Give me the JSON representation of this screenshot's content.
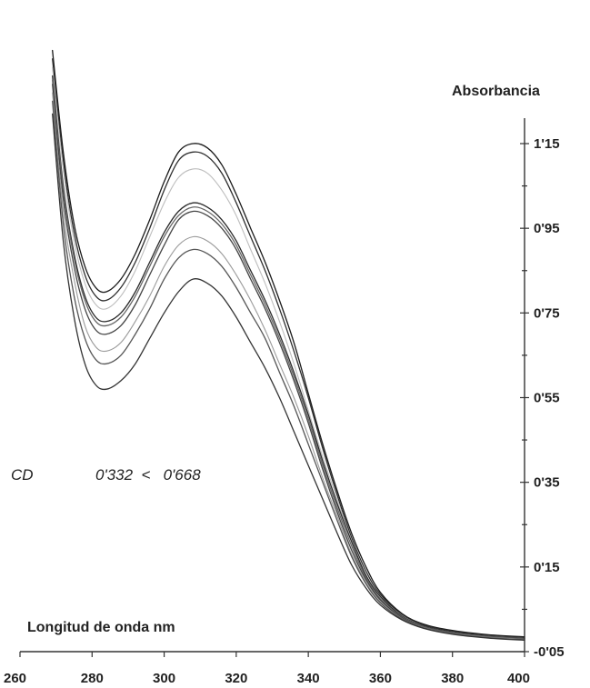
{
  "chart_data": {
    "type": "line",
    "xlabel": "Longitud de onda nm",
    "ylabel": "Absorbancia",
    "xlim": [
      260,
      400
    ],
    "ylim": [
      -0.05,
      1.2
    ],
    "x_ticks": [
      "260",
      "280",
      "300",
      "320",
      "340",
      "360",
      "380",
      "400"
    ],
    "y_ticks": [
      "1'15",
      "0'95",
      "0'75",
      "0'55",
      "0'35",
      "0'15",
      "-0'05"
    ],
    "y_tick_values": [
      1.15,
      0.95,
      0.75,
      0.55,
      0.35,
      0.15,
      -0.05
    ],
    "y_axis_position": "right",
    "grid": false,
    "annotation": {
      "label": "CD",
      "range_text": "0'332  <   0'668"
    },
    "x": [
      269,
      272,
      275,
      278,
      281,
      284,
      288,
      292,
      296,
      300,
      304,
      308,
      312,
      316,
      320,
      324,
      328,
      332,
      336,
      340,
      344,
      348,
      352,
      356,
      360,
      366,
      372,
      380,
      390,
      400
    ],
    "series": [
      {
        "color": "#1a1a1a",
        "values": [
          1.37,
          1.13,
          0.96,
          0.86,
          0.81,
          0.8,
          0.83,
          0.89,
          0.97,
          1.06,
          1.13,
          1.15,
          1.14,
          1.1,
          1.03,
          0.95,
          0.87,
          0.78,
          0.68,
          0.56,
          0.44,
          0.33,
          0.23,
          0.15,
          0.09,
          0.04,
          0.015,
          0.0,
          -0.01,
          -0.015
        ]
      },
      {
        "color": "#2e2e2e",
        "values": [
          1.35,
          1.11,
          0.94,
          0.84,
          0.79,
          0.78,
          0.81,
          0.87,
          0.95,
          1.04,
          1.11,
          1.13,
          1.12,
          1.08,
          1.01,
          0.93,
          0.85,
          0.76,
          0.66,
          0.55,
          0.43,
          0.32,
          0.22,
          0.14,
          0.085,
          0.038,
          0.013,
          -0.002,
          -0.012,
          -0.017
        ]
      },
      {
        "color": "#bdbdbd",
        "values": [
          1.33,
          1.09,
          0.92,
          0.82,
          0.77,
          0.76,
          0.79,
          0.85,
          0.93,
          1.01,
          1.07,
          1.09,
          1.08,
          1.04,
          0.98,
          0.9,
          0.82,
          0.73,
          0.63,
          0.52,
          0.41,
          0.31,
          0.21,
          0.13,
          0.08,
          0.035,
          0.01,
          -0.004,
          -0.013,
          -0.018
        ]
      },
      {
        "color": "#2a2a2a",
        "values": [
          1.31,
          1.05,
          0.89,
          0.79,
          0.74,
          0.73,
          0.75,
          0.8,
          0.87,
          0.94,
          0.99,
          1.01,
          1.0,
          0.97,
          0.92,
          0.85,
          0.78,
          0.7,
          0.61,
          0.51,
          0.4,
          0.3,
          0.21,
          0.13,
          0.08,
          0.034,
          0.01,
          -0.004,
          -0.013,
          -0.018
        ]
      },
      {
        "color": "#666666",
        "values": [
          1.3,
          1.04,
          0.88,
          0.78,
          0.73,
          0.72,
          0.74,
          0.79,
          0.86,
          0.93,
          0.98,
          1.0,
          0.99,
          0.96,
          0.91,
          0.84,
          0.77,
          0.69,
          0.6,
          0.5,
          0.39,
          0.29,
          0.2,
          0.125,
          0.075,
          0.032,
          0.009,
          -0.005,
          -0.014,
          -0.019
        ]
      },
      {
        "color": "#444444",
        "values": [
          1.29,
          1.02,
          0.86,
          0.76,
          0.71,
          0.7,
          0.72,
          0.77,
          0.84,
          0.91,
          0.97,
          0.99,
          0.98,
          0.95,
          0.9,
          0.83,
          0.76,
          0.68,
          0.59,
          0.49,
          0.38,
          0.28,
          0.19,
          0.12,
          0.072,
          0.03,
          0.008,
          -0.006,
          -0.015,
          -0.02
        ]
      },
      {
        "color": "#9a9a9a",
        "values": [
          1.27,
          0.99,
          0.83,
          0.72,
          0.67,
          0.66,
          0.68,
          0.73,
          0.79,
          0.86,
          0.91,
          0.93,
          0.92,
          0.89,
          0.84,
          0.78,
          0.71,
          0.63,
          0.55,
          0.46,
          0.36,
          0.27,
          0.18,
          0.115,
          0.068,
          0.028,
          0.007,
          -0.007,
          -0.016,
          -0.021
        ]
      },
      {
        "color": "#555555",
        "values": [
          1.25,
          0.96,
          0.79,
          0.69,
          0.64,
          0.63,
          0.65,
          0.7,
          0.76,
          0.83,
          0.88,
          0.9,
          0.89,
          0.86,
          0.81,
          0.75,
          0.69,
          0.61,
          0.53,
          0.44,
          0.35,
          0.26,
          0.175,
          0.11,
          0.065,
          0.027,
          0.006,
          -0.008,
          -0.017,
          -0.022
        ]
      },
      {
        "color": "#333333",
        "values": [
          1.22,
          0.92,
          0.74,
          0.63,
          0.58,
          0.57,
          0.59,
          0.63,
          0.69,
          0.75,
          0.8,
          0.83,
          0.82,
          0.79,
          0.74,
          0.68,
          0.62,
          0.55,
          0.47,
          0.39,
          0.31,
          0.23,
          0.155,
          0.1,
          0.06,
          0.025,
          0.005,
          -0.009,
          -0.018,
          -0.023
        ]
      }
    ]
  }
}
